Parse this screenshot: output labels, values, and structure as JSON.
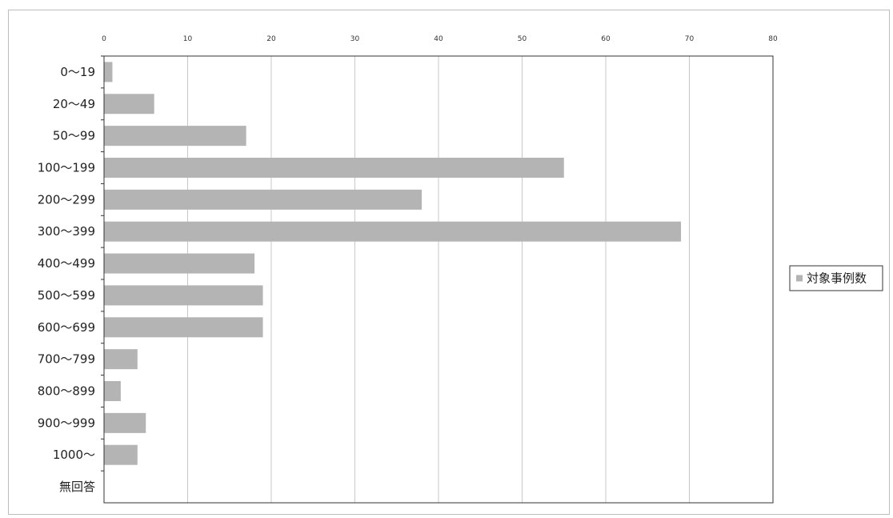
{
  "chart_data": {
    "type": "bar",
    "orientation": "horizontal",
    "categories": [
      "0～19",
      "20～49",
      "50～99",
      "100～199",
      "200～299",
      "300～399",
      "400～499",
      "500～599",
      "600～699",
      "700～799",
      "800～899",
      "900～999",
      "1000～",
      "無回答"
    ],
    "series": [
      {
        "name": "対象事例数",
        "values": [
          1,
          6,
          17,
          55,
          38,
          69,
          18,
          19,
          19,
          4,
          2,
          5,
          4,
          0
        ]
      }
    ],
    "xlim": [
      0,
      80
    ],
    "xticks": [
      "0",
      "10",
      "20",
      "30",
      "40",
      "50",
      "60",
      "70",
      "80"
    ],
    "x_axis_position": "top",
    "grid": "vertical",
    "legend_position": "right",
    "bar_color": "#b4b4b4"
  }
}
